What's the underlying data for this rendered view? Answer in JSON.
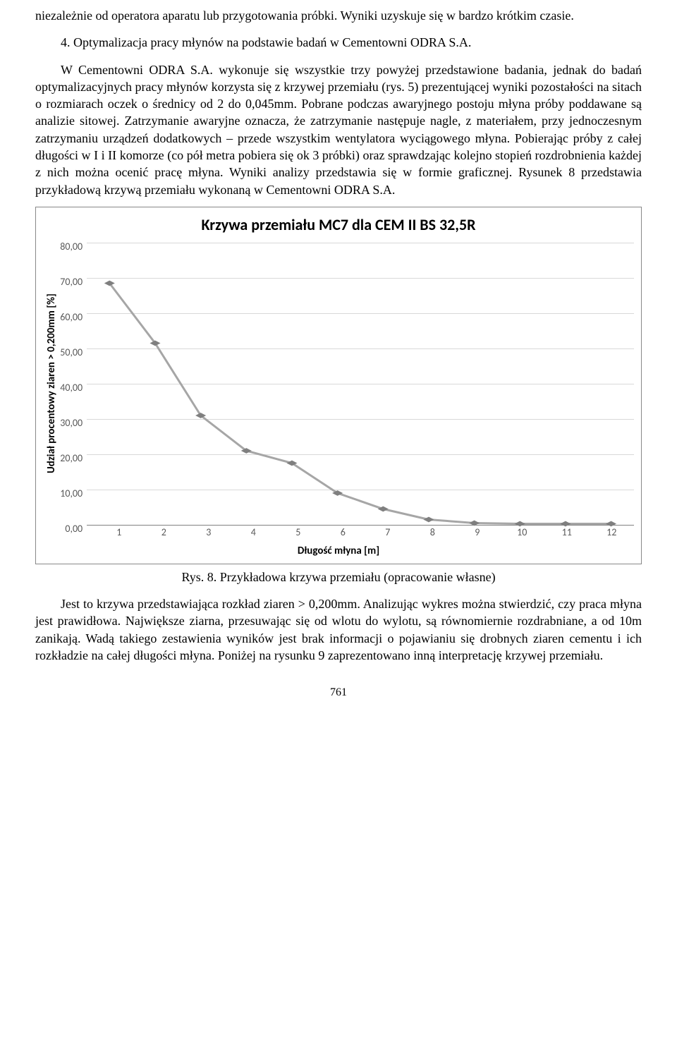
{
  "para_intro": "niezależnie od operatora aparatu lub przygotowania próbki. Wyniki uzyskuje się w bardzo krótkim czasie.",
  "heading4": "4. Optymalizacja pracy młynów na podstawie badań w Cementowni ODRA S.A.",
  "para_main": "W Cementowni ODRA S.A. wykonuje się wszystkie trzy powyżej przedstawione badania, jednak do badań optymalizacyjnych pracy młynów korzysta się z krzywej przemiału (rys. 5) prezentującej wyniki pozostałości na sitach o rozmiarach oczek o średnicy od 2 do 0,045mm. Pobrane podczas awaryjnego postoju młyna próby poddawane są analizie sitowej. Zatrzymanie awaryjne oznacza, że zatrzymanie następuje nagle, z materiałem, przy jednoczesnym zatrzymaniu urządzeń dodatkowych – przede wszystkim wentylatora wyciągowego młyna. Pobierając próby z całej długości w I i II komorze (co pół metra pobiera się ok 3 próbki) oraz sprawdzając kolejno stopień rozdrobnienia każdej z nich można ocenić pracę młyna. Wyniki analizy przedstawia się w formie graficznej. Rysunek 8 przedstawia przykładową krzywą przemiału wykonaną w Cementowni ODRA S.A.",
  "chart": {
    "type": "line",
    "title": "Krzywa przemiału MC7 dla CEM II BS 32,5R",
    "xlabel": "Długość młyna [m]",
    "ylabel": "Udział procentowy ziaren > 0,200mm [%]",
    "x": [
      1,
      2,
      3,
      4,
      5,
      6,
      7,
      8,
      9,
      10,
      11,
      12
    ],
    "y": [
      68.5,
      51.5,
      31.0,
      21.0,
      17.5,
      9.0,
      4.5,
      1.5,
      0.5,
      0.3,
      0.3,
      0.3
    ],
    "ylim": [
      0,
      80
    ],
    "ytick_step": 10,
    "yticks": [
      "80,00",
      "70,00",
      "60,00",
      "50,00",
      "40,00",
      "30,00",
      "20,00",
      "10,00",
      "0,00"
    ],
    "xticks": [
      "1",
      "2",
      "3",
      "4",
      "5",
      "6",
      "7",
      "8",
      "9",
      "10",
      "11",
      "12"
    ],
    "line_color": "#a6a6a6",
    "line_width": 3,
    "marker_shape": "diamond",
    "marker_size": 9,
    "marker_color": "#7f7f7f",
    "grid_color": "#d9d9d9",
    "axis_color": "#808080",
    "background_color": "#ffffff",
    "tick_font_color": "#595959",
    "label_fontsize": 15,
    "title_fontsize": 22,
    "tick_fontsize": 14
  },
  "fig_caption": "Rys. 8. Przykładowa krzywa przemiału (opracowanie własne)",
  "para_after": "Jest to krzywa przedstawiająca rozkład ziaren > 0,200mm. Analizując wykres można stwierdzić, czy praca młyna jest prawidłowa. Największe ziarna, przesuwając się od wlotu do wylotu, są równomiernie rozdrabniane, a od 10m zanikają. Wadą takiego zestawienia wyników jest brak informacji o pojawianiu się drobnych ziaren cementu i ich rozkładzie na całej długości młyna. Poniżej na rysunku 9 zaprezentowano inną interpretację krzywej przemiału.",
  "page_number": "761"
}
